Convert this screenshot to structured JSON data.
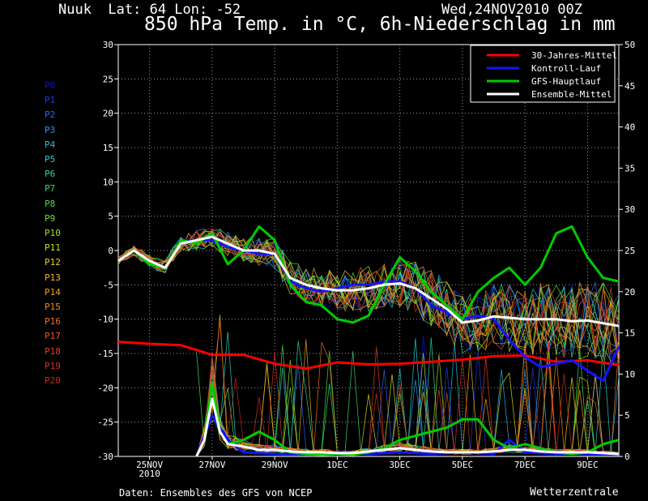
{
  "header": {
    "location": "Nuuk  Lat: 64 Lon: -52",
    "date": "Wed,24NOV2010 00Z",
    "title": "850 hPa Temp. in °C, 6h-Niederschlag in mm"
  },
  "footer": {
    "source": "Daten: Ensembles des GFS von NCEP",
    "brand": "Wetterzentrale"
  },
  "members": [
    {
      "name": "P0",
      "color": "#1010e0"
    },
    {
      "name": "P1",
      "color": "#1a3cf0"
    },
    {
      "name": "P2",
      "color": "#2268f4"
    },
    {
      "name": "P3",
      "color": "#2a94f0"
    },
    {
      "name": "P4",
      "color": "#28b8e8"
    },
    {
      "name": "P5",
      "color": "#26d0d0"
    },
    {
      "name": "P6",
      "color": "#2ad8a0"
    },
    {
      "name": "P7",
      "color": "#30dc70"
    },
    {
      "name": "P8",
      "color": "#48e040"
    },
    {
      "name": "P9",
      "color": "#70e028"
    },
    {
      "name": "P10",
      "color": "#a0e020"
    },
    {
      "name": "P11",
      "color": "#ccdc20"
    },
    {
      "name": "P12",
      "color": "#e8d020"
    },
    {
      "name": "P13",
      "color": "#f0b820"
    },
    {
      "name": "P14",
      "color": "#f0a020"
    },
    {
      "name": "P15",
      "color": "#f08820"
    },
    {
      "name": "P16",
      "color": "#ec7020"
    },
    {
      "name": "P17",
      "color": "#e85820"
    },
    {
      "name": "P18",
      "color": "#e04020"
    },
    {
      "name": "P19",
      "color": "#d83020"
    },
    {
      "name": "P20",
      "color": "#c82818"
    }
  ],
  "chart_data": {
    "type": "line",
    "title": "850 hPa Temp. in °C, 6h-Niederschlag in mm",
    "x_unit": "days after 24NOV2010 00Z",
    "xlim": [
      0,
      16
    ],
    "x_ticks": [
      {
        "x": 1,
        "label": "25NOV",
        "sub": "2010"
      },
      {
        "x": 3,
        "label": "27NOV"
      },
      {
        "x": 5,
        "label": "29NOV"
      },
      {
        "x": 7,
        "label": "1DEC"
      },
      {
        "x": 9,
        "label": "3DEC"
      },
      {
        "x": 11,
        "label": "5DEC"
      },
      {
        "x": 13,
        "label": "7DEC"
      },
      {
        "x": 15,
        "label": "9DEC"
      }
    ],
    "y_left": {
      "label": "850 hPa Temp. °C",
      "range": [
        -30,
        30
      ],
      "ticks": [
        -30,
        -25,
        -20,
        -15,
        -10,
        -5,
        0,
        5,
        10,
        15,
        20,
        25,
        30
      ]
    },
    "y_right": {
      "label": "6h-Niederschlag mm",
      "range": [
        0,
        50
      ],
      "ticks": [
        0,
        5,
        10,
        15,
        20,
        25,
        30,
        35,
        40,
        45,
        50
      ]
    },
    "grid": true,
    "legend_position": "top-right",
    "legend": [
      {
        "name": "30-Jahres-Mittel",
        "color": "#ff0000"
      },
      {
        "name": "Kontroll-Lauf",
        "color": "#1414ff"
      },
      {
        "name": "GFS-Hauptlauf",
        "color": "#00cc00"
      },
      {
        "name": "Ensemble-Mittel",
        "color": "#ffffff"
      }
    ],
    "series": [
      {
        "name": "30-Jahres-Mittel",
        "axis": "temp",
        "color": "#ff0000",
        "points": [
          [
            0,
            -13.3
          ],
          [
            1,
            -13.6
          ],
          [
            2,
            -13.8
          ],
          [
            3,
            -15.2
          ],
          [
            4,
            -15.2
          ],
          [
            5,
            -16.5
          ],
          [
            6,
            -17.2
          ],
          [
            7,
            -16.3
          ],
          [
            8,
            -16.6
          ],
          [
            9,
            -16.5
          ],
          [
            10,
            -16.2
          ],
          [
            11,
            -15.9
          ],
          [
            12,
            -15.4
          ],
          [
            13,
            -15.3
          ],
          [
            14,
            -16.2
          ],
          [
            15,
            -16.0
          ],
          [
            16,
            -16.7
          ]
        ]
      },
      {
        "name": "Ensemble-Mittel",
        "axis": "temp",
        "color": "#ffffff",
        "points": [
          [
            0,
            -1.5
          ],
          [
            0.5,
            0
          ],
          [
            1,
            -1.5
          ],
          [
            1.5,
            -2.5
          ],
          [
            2,
            1
          ],
          [
            2.5,
            1.5
          ],
          [
            3,
            2
          ],
          [
            3.5,
            1
          ],
          [
            4,
            0
          ],
          [
            4.5,
            0
          ],
          [
            5,
            -0.5
          ],
          [
            5.5,
            -4
          ],
          [
            6,
            -5
          ],
          [
            6.5,
            -5.5
          ],
          [
            7,
            -5.8
          ],
          [
            7.5,
            -5.8
          ],
          [
            8,
            -5.5
          ],
          [
            8.5,
            -5
          ],
          [
            9,
            -4.8
          ],
          [
            9.5,
            -5.5
          ],
          [
            10,
            -7
          ],
          [
            10.5,
            -8.5
          ],
          [
            11,
            -10.5
          ],
          [
            11.5,
            -10.2
          ],
          [
            12,
            -9.6
          ],
          [
            12.5,
            -9.8
          ],
          [
            13,
            -10
          ],
          [
            13.5,
            -10
          ],
          [
            14,
            -10
          ],
          [
            14.5,
            -10.3
          ],
          [
            15,
            -10.2
          ],
          [
            15.5,
            -10.6
          ],
          [
            16,
            -11
          ]
        ]
      },
      {
        "name": "GFS-Hauptlauf",
        "axis": "temp",
        "color": "#00cc00",
        "points": [
          [
            0,
            -1.5
          ],
          [
            0.5,
            0
          ],
          [
            1,
            -2
          ],
          [
            1.5,
            -2.5
          ],
          [
            2,
            1.5
          ],
          [
            2.5,
            1
          ],
          [
            3,
            2.5
          ],
          [
            3.5,
            -2
          ],
          [
            4,
            0
          ],
          [
            4.5,
            3.5
          ],
          [
            5,
            1.5
          ],
          [
            5.5,
            -5
          ],
          [
            6,
            -7.5
          ],
          [
            6.5,
            -8
          ],
          [
            7,
            -10
          ],
          [
            7.5,
            -10.5
          ],
          [
            8,
            -9.5
          ],
          [
            8.5,
            -5
          ],
          [
            9,
            -1
          ],
          [
            9.5,
            -3
          ],
          [
            10,
            -6
          ],
          [
            10.5,
            -8
          ],
          [
            11,
            -10
          ],
          [
            11.5,
            -6
          ],
          [
            12,
            -4
          ],
          [
            12.5,
            -2.5
          ],
          [
            13,
            -5
          ],
          [
            13.5,
            -2.5
          ],
          [
            14,
            2.5
          ],
          [
            14.5,
            3.5
          ],
          [
            15,
            -1
          ],
          [
            15.5,
            -4
          ],
          [
            16,
            -4.5
          ]
        ]
      },
      {
        "name": "Kontroll-Lauf",
        "axis": "temp",
        "color": "#1414ff",
        "points": [
          [
            0,
            -1.5
          ],
          [
            0.5,
            0
          ],
          [
            1,
            -1.5
          ],
          [
            1.5,
            -2.5
          ],
          [
            2,
            1.5
          ],
          [
            2.5,
            1.5
          ],
          [
            3,
            1.5
          ],
          [
            3.5,
            0.5
          ],
          [
            4,
            0
          ],
          [
            4.5,
            -0.5
          ],
          [
            5,
            -0.5
          ],
          [
            5.5,
            -4.5
          ],
          [
            6,
            -5.5
          ],
          [
            6.5,
            -6
          ],
          [
            7,
            -5.5
          ],
          [
            7.5,
            -5
          ],
          [
            8,
            -5
          ],
          [
            8.5,
            -4.5
          ],
          [
            9,
            -4.5
          ],
          [
            9.5,
            -5.5
          ],
          [
            10,
            -8
          ],
          [
            10.5,
            -9
          ],
          [
            11,
            -10
          ],
          [
            11.5,
            -9.5
          ],
          [
            12,
            -10
          ],
          [
            12.5,
            -13
          ],
          [
            13,
            -15.5
          ],
          [
            13.5,
            -17
          ],
          [
            14,
            -16.5
          ],
          [
            14.5,
            -16
          ],
          [
            15,
            -17.5
          ],
          [
            15.5,
            -19
          ],
          [
            16,
            -14
          ]
        ]
      },
      {
        "name": "Ensemble-Mittel",
        "axis": "precip",
        "color": "#ffffff",
        "points": [
          [
            2.5,
            0
          ],
          [
            2.75,
            2
          ],
          [
            3,
            7
          ],
          [
            3.25,
            3
          ],
          [
            3.5,
            1.5
          ],
          [
            4,
            1.2
          ],
          [
            4.5,
            0.8
          ],
          [
            5,
            0.8
          ],
          [
            5.5,
            0.6
          ],
          [
            6,
            0.5
          ],
          [
            6.5,
            0.5
          ],
          [
            7,
            0.4
          ],
          [
            7.5,
            0.4
          ],
          [
            8,
            0.6
          ],
          [
            8.5,
            0.8
          ],
          [
            9,
            1.0
          ],
          [
            9.5,
            0.8
          ],
          [
            10,
            0.6
          ],
          [
            10.5,
            0.5
          ],
          [
            11,
            0.5
          ],
          [
            11.5,
            0.5
          ],
          [
            12,
            0.6
          ],
          [
            12.5,
            0.8
          ],
          [
            13,
            0.8
          ],
          [
            13.5,
            0.6
          ],
          [
            14,
            0.5
          ],
          [
            14.5,
            0.5
          ],
          [
            15,
            0.5
          ],
          [
            15.5,
            0.4
          ],
          [
            16,
            0.3
          ]
        ]
      },
      {
        "name": "GFS-Hauptlauf",
        "axis": "precip",
        "color": "#00cc00",
        "points": [
          [
            2.5,
            0
          ],
          [
            2.75,
            2
          ],
          [
            3,
            9
          ],
          [
            3.25,
            3
          ],
          [
            3.5,
            1.5
          ],
          [
            4,
            2
          ],
          [
            4.5,
            3
          ],
          [
            5,
            2
          ],
          [
            5.5,
            0.5
          ],
          [
            6,
            0.3
          ],
          [
            6.5,
            0.2
          ],
          [
            7,
            0.3
          ],
          [
            7.5,
            0.2
          ],
          [
            8,
            0.5
          ],
          [
            8.5,
            1
          ],
          [
            9,
            2
          ],
          [
            9.5,
            2.5
          ],
          [
            10,
            3
          ],
          [
            10.5,
            3.5
          ],
          [
            11,
            4.5
          ],
          [
            11.5,
            4.5
          ],
          [
            12,
            2
          ],
          [
            12.5,
            1
          ],
          [
            13,
            1.5
          ],
          [
            13.5,
            1
          ],
          [
            14,
            0.5
          ],
          [
            14.5,
            0.3
          ],
          [
            15,
            0.5
          ],
          [
            15.5,
            1.5
          ],
          [
            16,
            2
          ]
        ]
      },
      {
        "name": "Kontroll-Lauf",
        "axis": "precip",
        "color": "#1414ff",
        "points": [
          [
            2.5,
            0
          ],
          [
            3,
            5
          ],
          [
            3.5,
            2
          ],
          [
            4,
            0.5
          ],
          [
            5,
            0.3
          ],
          [
            6,
            0.2
          ],
          [
            7,
            0.5
          ],
          [
            8,
            0.3
          ],
          [
            9,
            0.5
          ],
          [
            10,
            0.3
          ],
          [
            11,
            0.5
          ],
          [
            12,
            0.3
          ],
          [
            12.5,
            2
          ],
          [
            13,
            0.5
          ],
          [
            14,
            0.3
          ],
          [
            15,
            0.3
          ],
          [
            16,
            0.2
          ]
        ]
      }
    ]
  }
}
